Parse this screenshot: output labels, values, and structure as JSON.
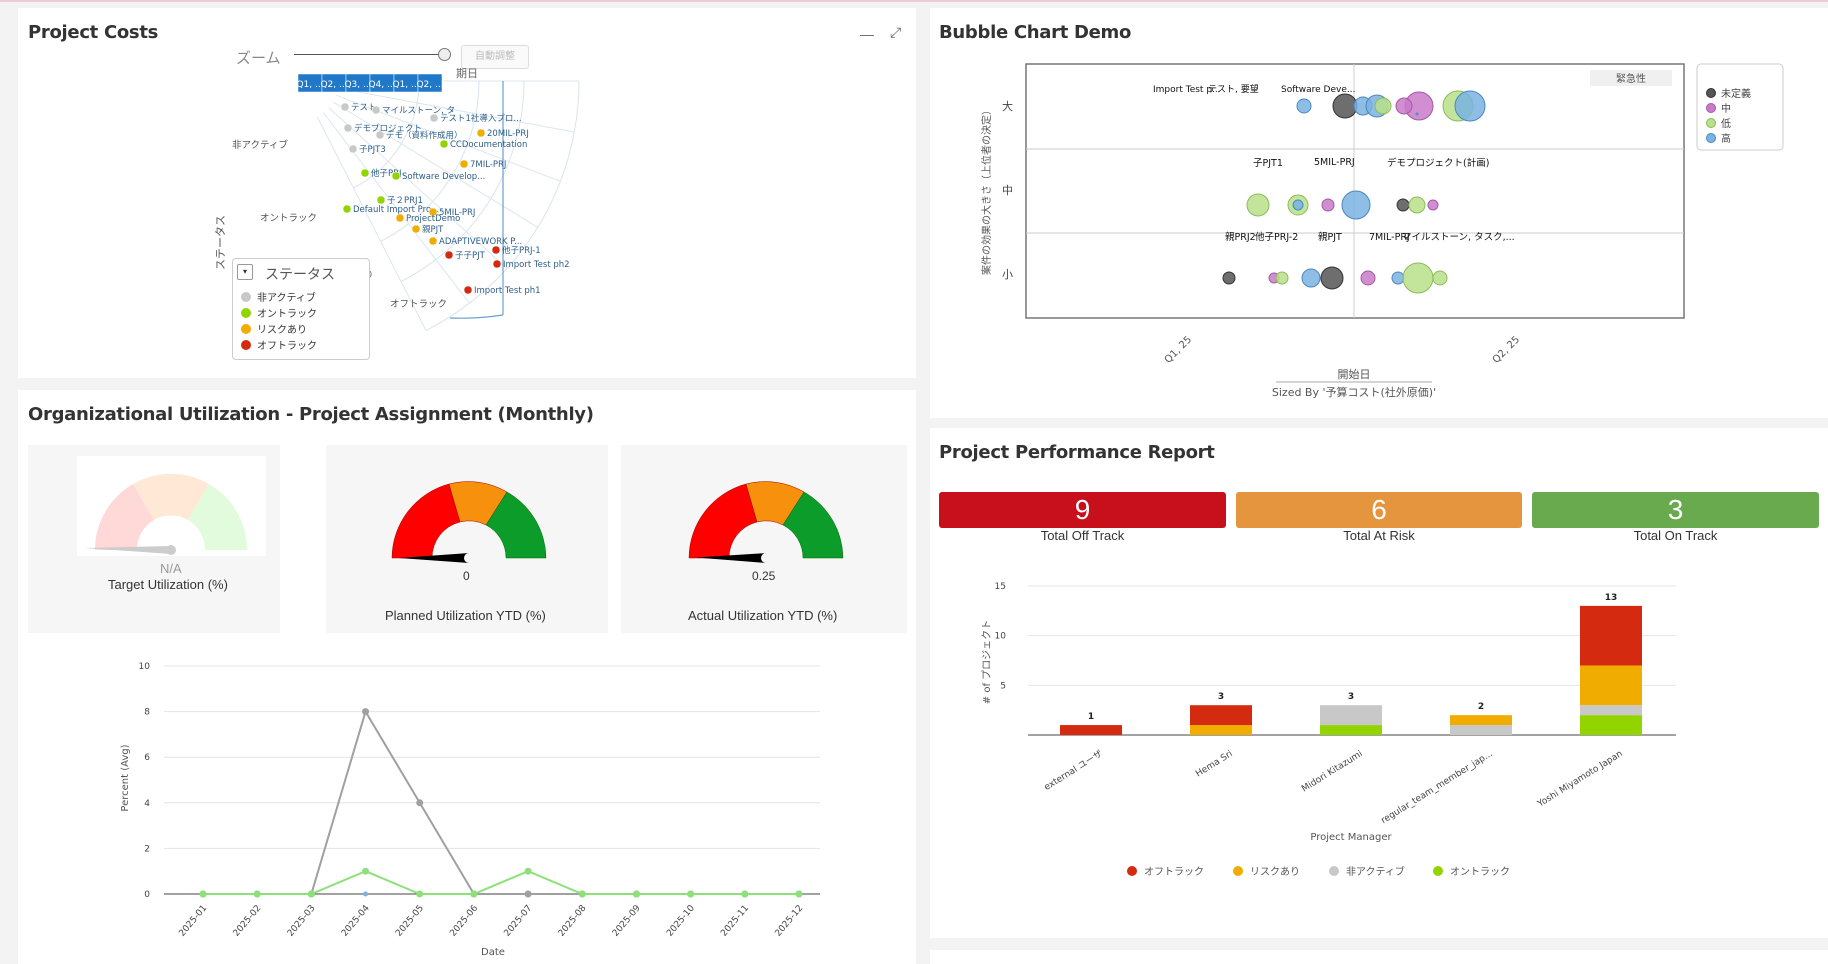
{
  "colors": {
    "off": "#d42a0f",
    "risk": "#f0ad00",
    "inactive": "#c8c8c8",
    "on": "#92d400",
    "header_blue": "#1f78c8",
    "kpi_off": "#c8101c",
    "kpi_risk": "#e6953f",
    "kpi_on": "#6aaa4e",
    "bubble_undefined": "#555555",
    "bubble_mid": "#c97ac9",
    "bubble_low": "#b9e08a",
    "bubble_high": "#7ab3e0"
  },
  "project_costs": {
    "title": "Project Costs",
    "zoom_label": "ズーム",
    "auto_adjust": "自動調整",
    "period_label": "期日",
    "status_axis": "ステータス",
    "quarters": [
      "Q1, ...",
      "Q2, ...",
      "Q3, ...",
      "Q4, ...",
      "Q1, ...",
      "Q2, ..."
    ],
    "ring_labels": [
      "非アクティブ",
      "オントラック",
      "リスクあり",
      "オフトラック"
    ],
    "legend_title": "ステータス",
    "legend": [
      "非アクティブ",
      "オントラック",
      "リスクあり",
      "オフトラック"
    ],
    "points": [
      {
        "label": "テスト",
        "status": "inactive"
      },
      {
        "label": "マイルストーン, タ",
        "status": "inactive"
      },
      {
        "label": "テスト1社導入プロ...",
        "status": "inactive"
      },
      {
        "label": "デモプロジェクト",
        "status": "inactive"
      },
      {
        "label": "デモ（資料作成用）",
        "status": "inactive"
      },
      {
        "label": "20MIL-PRJ",
        "status": "risk"
      },
      {
        "label": "CCDocumentation",
        "status": "on"
      },
      {
        "label": "子PJT3",
        "status": "inactive"
      },
      {
        "label": "7MIL-PRJ",
        "status": "risk"
      },
      {
        "label": "他子PRJ",
        "status": "on"
      },
      {
        "label": "Software Develop...",
        "status": "on"
      },
      {
        "label": "子２PRJ1",
        "status": "on"
      },
      {
        "label": "Default Import Pro...",
        "status": "on"
      },
      {
        "label": "5MIL-PRJ",
        "status": "risk"
      },
      {
        "label": "ProjectDemo",
        "status": "risk"
      },
      {
        "label": "親PJT",
        "status": "risk"
      },
      {
        "label": "ADAPTIVEWORK P...",
        "status": "risk"
      },
      {
        "label": "他子PRJ-1",
        "status": "off"
      },
      {
        "label": "子子PJT",
        "status": "off"
      },
      {
        "label": "Import Test ph2",
        "status": "off"
      },
      {
        "label": "Import Test ph1",
        "status": "off"
      }
    ]
  },
  "bubble": {
    "title": "Bubble Chart Demo",
    "legend_title": "緊急性",
    "legend": [
      "未定義",
      "中",
      "低",
      "高"
    ],
    "y_title": "案件の効果の大きさ（上位者の決定）",
    "y_levels": [
      "大",
      "中",
      "小"
    ],
    "x_ticks": [
      "Q1, 25",
      "Q2, 25"
    ],
    "x_title": "開始日",
    "sized_by": "Sized By '予算コスト(社外原価)'",
    "labels_top": [
      "Import Test p...",
      "テスト, 要望",
      "Software Deve..."
    ],
    "labels_mid": [
      "子PJT1",
      "5MIL-PRJ",
      "デモプロジェクト(計画)"
    ],
    "labels_low": [
      "親PRJ2",
      "他子PRJ-2",
      "親PJT",
      "7MIL-PRJ",
      "マイルストーン, タスク,..."
    ]
  },
  "utilization": {
    "title": "Organizational Utilization - Project Assignment (Monthly)",
    "target": {
      "value": "N/A",
      "label": "Target Utilization (%)"
    },
    "planned": {
      "value": "0",
      "label": "Planned Utilization YTD (%)",
      "fraction": 0.0
    },
    "actual": {
      "value": "0.25",
      "label": "Actual Utilization YTD (%)",
      "fraction": 0.0025
    }
  },
  "line_chart": {
    "chart_data": {
      "type": "line",
      "x": [
        "2025-01",
        "2025-02",
        "2025-03",
        "2025-04",
        "2025-05",
        "2025-06",
        "2025-07",
        "2025-08",
        "2025-09",
        "2025-10",
        "2025-11",
        "2025-12"
      ],
      "series": [
        {
          "name": "gray",
          "color": "#a0a0a0",
          "values": [
            0,
            0,
            0,
            8,
            4,
            0,
            0,
            0,
            0,
            0,
            0,
            0
          ]
        },
        {
          "name": "green",
          "color": "#8ee07a",
          "values": [
            0,
            0,
            0,
            1,
            0,
            0,
            1,
            0,
            0,
            0,
            0,
            0
          ]
        }
      ],
      "y_ticks": [
        "0",
        "2",
        "4",
        "6",
        "8",
        "10"
      ],
      "ylim": [
        0,
        10
      ],
      "xlabel": "Date",
      "ylabel": "Percent (Avg)"
    }
  },
  "performance": {
    "title": "Project Performance Report",
    "kpis": [
      {
        "value": "9",
        "label": "Total Off Track"
      },
      {
        "value": "6",
        "label": "Total At Risk"
      },
      {
        "value": "3",
        "label": "Total On Track"
      }
    ],
    "chart_data": {
      "type": "bar",
      "stacked": true,
      "categories": [
        "external ユーザ",
        "Hema Sri",
        "Midori Kitazumi",
        "regular_team_member_jap...",
        "Yoshi Miyamoto Japan"
      ],
      "totals": [
        "1",
        "3",
        "3",
        "2",
        "13"
      ],
      "series": [
        {
          "name": "オントラック",
          "key": "on",
          "values": [
            0,
            0,
            1,
            0,
            2
          ]
        },
        {
          "name": "非アクティブ",
          "key": "inactive",
          "values": [
            0,
            0,
            2,
            1,
            1
          ]
        },
        {
          "name": "リスクあり",
          "key": "risk",
          "values": [
            0,
            1,
            0,
            1,
            4
          ]
        },
        {
          "name": "オフトラック",
          "key": "off",
          "values": [
            1,
            2,
            0,
            0,
            6
          ]
        }
      ],
      "y_ticks": [
        "15",
        "10",
        "5"
      ],
      "ylim": [
        0,
        15
      ],
      "ylabel": "# of プロジェクト",
      "xlabel": "Project Manager",
      "legend": [
        "オフトラック",
        "リスクあり",
        "非アクティブ",
        "オントラック"
      ]
    }
  }
}
